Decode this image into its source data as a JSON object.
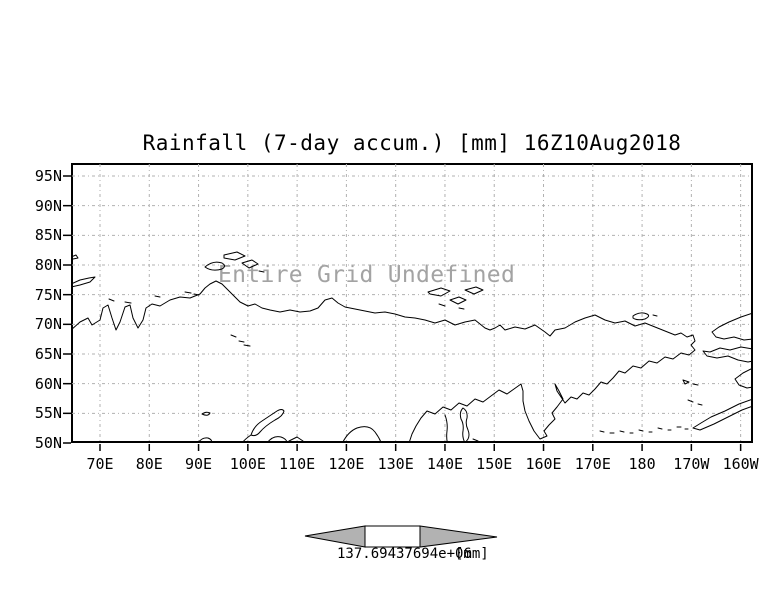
{
  "chart_data": {
    "type": "map",
    "title": "Rainfall (7-day accum.) [mm] 16Z10Aug2018",
    "overlay_text": "Entire Grid Undefined",
    "data_status": "no data plotted (entire grid undefined)",
    "x_axis": {
      "tick_labels": [
        "70E",
        "80E",
        "90E",
        "100E",
        "110E",
        "120E",
        "130E",
        "140E",
        "150E",
        "160E",
        "170E",
        "180",
        "170W",
        "160W"
      ]
    },
    "y_axis": {
      "tick_labels": [
        "95N",
        "90N",
        "85N",
        "80N",
        "75N",
        "70N",
        "65N",
        "60N",
        "55N",
        "50N"
      ]
    },
    "grid": "dotted",
    "legend_position": "bottom-center",
    "colorbar": {
      "value_label": "137.69437694e+06",
      "units_label": "[mm]"
    },
    "colors": {
      "background": "#ffffff",
      "coastline": "#000000",
      "frame": "#000000",
      "gridline": "#b0b0b0",
      "overlay_text": "#a3a3a3",
      "colorbar_fill": "#b2b2b2",
      "label_text": "#000000"
    }
  }
}
